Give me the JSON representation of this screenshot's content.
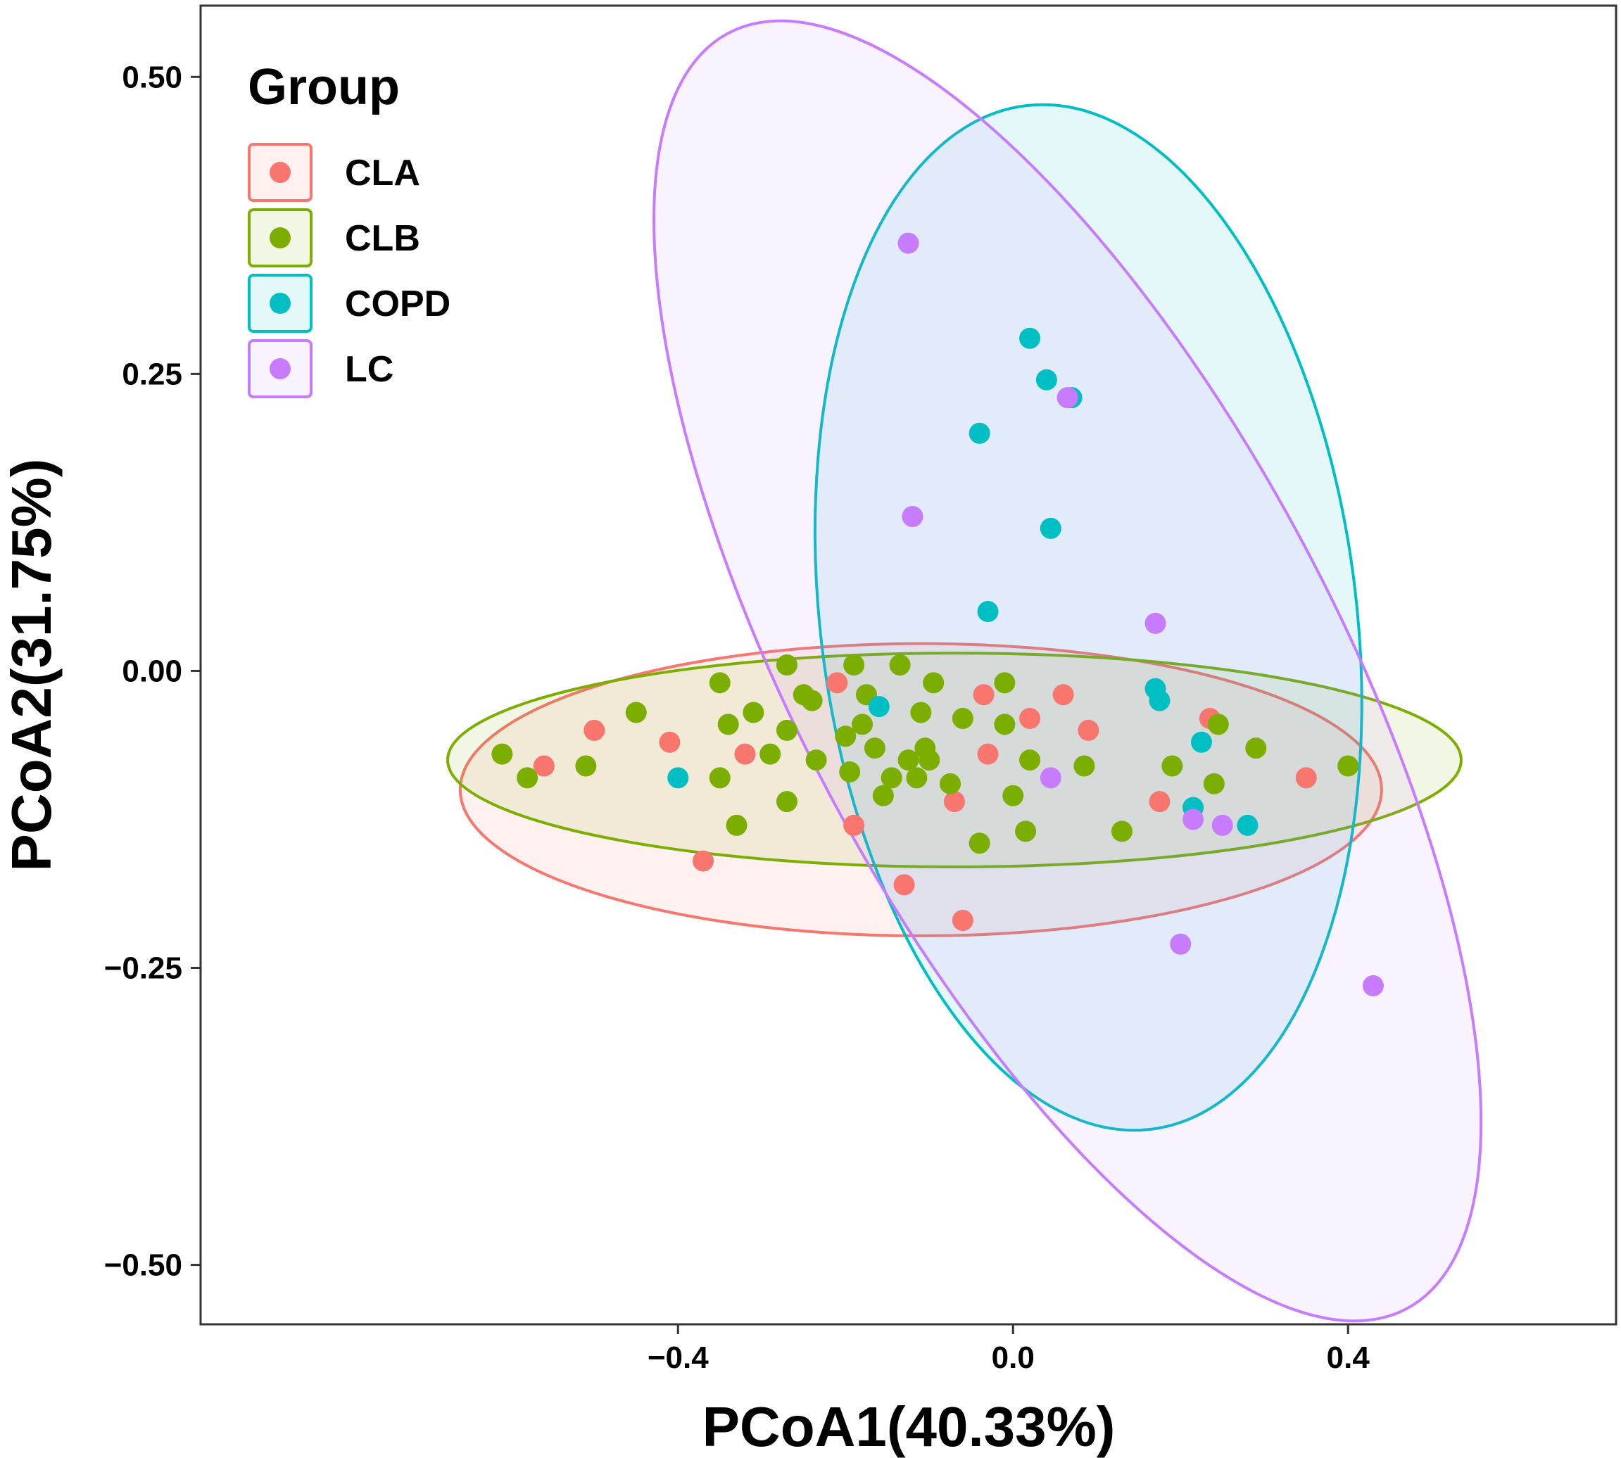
{
  "chart_data": {
    "type": "scatter",
    "title": "",
    "xlabel": "PCoA1(40.33%)",
    "ylabel": "PCoA2(31.75%)",
    "xlim": [
      -0.97,
      0.72
    ],
    "ylim": [
      -0.55,
      0.56
    ],
    "x_ticks": [
      -0.4,
      0.0,
      0.4
    ],
    "x_tick_labels": [
      "−0.4",
      "0.0",
      "0.4"
    ],
    "y_ticks": [
      0.5,
      0.25,
      0.0,
      -0.25,
      -0.5
    ],
    "y_tick_labels": [
      "0.50",
      "0.25",
      "0.00",
      "−0.25",
      "−0.50"
    ],
    "grid": false,
    "legend": {
      "title": "Group",
      "position": "top-left",
      "entries": [
        "CLA",
        "CLB",
        "COPD",
        "LC"
      ]
    },
    "series": [
      {
        "name": "CLA",
        "color": "#F8766D",
        "ellipse": {
          "center": [
            -0.11,
            -0.1
          ],
          "rx": 0.55,
          "ry": 0.123,
          "angle": 0
        },
        "points": [
          [
            -0.56,
            -0.08
          ],
          [
            -0.5,
            -0.05
          ],
          [
            -0.41,
            -0.06
          ],
          [
            -0.37,
            -0.16
          ],
          [
            -0.32,
            -0.07
          ],
          [
            -0.21,
            -0.01
          ],
          [
            -0.19,
            -0.13
          ],
          [
            -0.13,
            -0.18
          ],
          [
            -0.07,
            -0.11
          ],
          [
            -0.06,
            -0.21
          ],
          [
            -0.035,
            -0.02
          ],
          [
            -0.03,
            -0.07
          ],
          [
            0.02,
            -0.04
          ],
          [
            0.06,
            -0.02
          ],
          [
            0.09,
            -0.05
          ],
          [
            0.175,
            -0.11
          ],
          [
            0.235,
            -0.04
          ],
          [
            0.35,
            -0.09
          ]
        ]
      },
      {
        "name": "CLB",
        "color": "#7CAE00",
        "ellipse": {
          "center": [
            -0.07,
            -0.075
          ],
          "rx": 0.605,
          "ry": 0.09,
          "angle": 0
        },
        "points": [
          [
            -0.61,
            -0.07
          ],
          [
            -0.58,
            -0.09
          ],
          [
            -0.51,
            -0.08
          ],
          [
            -0.45,
            -0.035
          ],
          [
            -0.35,
            -0.01
          ],
          [
            -0.34,
            -0.045
          ],
          [
            -0.35,
            -0.09
          ],
          [
            -0.33,
            -0.13
          ],
          [
            -0.31,
            -0.035
          ],
          [
            -0.29,
            -0.07
          ],
          [
            -0.27,
            0.005
          ],
          [
            -0.25,
            -0.02
          ],
          [
            -0.27,
            -0.05
          ],
          [
            -0.24,
            -0.025
          ],
          [
            -0.235,
            -0.075
          ],
          [
            -0.27,
            -0.11
          ],
          [
            -0.2,
            -0.055
          ],
          [
            -0.195,
            -0.085
          ],
          [
            -0.19,
            0.005
          ],
          [
            -0.18,
            -0.045
          ],
          [
            -0.175,
            -0.02
          ],
          [
            -0.165,
            -0.065
          ],
          [
            -0.155,
            -0.105
          ],
          [
            -0.145,
            -0.09
          ],
          [
            -0.135,
            0.005
          ],
          [
            -0.125,
            -0.075
          ],
          [
            -0.115,
            -0.09
          ],
          [
            -0.11,
            -0.035
          ],
          [
            -0.105,
            -0.065
          ],
          [
            -0.1,
            -0.075
          ],
          [
            -0.095,
            -0.01
          ],
          [
            -0.075,
            -0.095
          ],
          [
            -0.06,
            -0.04
          ],
          [
            -0.04,
            -0.145
          ],
          [
            -0.01,
            -0.01
          ],
          [
            -0.01,
            -0.045
          ],
          [
            0.015,
            -0.135
          ],
          [
            0.02,
            -0.075
          ],
          [
            0.0,
            -0.105
          ],
          [
            0.085,
            -0.08
          ],
          [
            0.13,
            -0.135
          ],
          [
            0.19,
            -0.08
          ],
          [
            0.245,
            -0.045
          ],
          [
            0.24,
            -0.095
          ],
          [
            0.29,
            -0.065
          ],
          [
            0.4,
            -0.08
          ]
        ]
      },
      {
        "name": "COPD",
        "color": "#00BFC4",
        "ellipse": {
          "center": [
            0.09,
            0.045
          ],
          "rx": 0.32,
          "ry": 0.434,
          "angle": -7
        },
        "points": [
          [
            -0.4,
            -0.09
          ],
          [
            -0.16,
            -0.03
          ],
          [
            -0.04,
            0.2
          ],
          [
            -0.03,
            0.05
          ],
          [
            0.02,
            0.28
          ],
          [
            0.04,
            0.245
          ],
          [
            0.07,
            0.23
          ],
          [
            0.045,
            0.12
          ],
          [
            0.17,
            -0.015
          ],
          [
            0.175,
            -0.025
          ],
          [
            0.225,
            -0.06
          ],
          [
            0.215,
            -0.115
          ],
          [
            0.28,
            -0.13
          ]
        ]
      },
      {
        "name": "LC",
        "color": "#C77CFF",
        "ellipse": {
          "center": [
            0.065,
            0.0
          ],
          "rx": 0.32,
          "ry": 0.608,
          "angle": -28
        },
        "points": [
          [
            -0.125,
            0.36
          ],
          [
            -0.12,
            0.13
          ],
          [
            0.065,
            0.23
          ],
          [
            0.045,
            -0.09
          ],
          [
            0.17,
            0.04
          ],
          [
            0.2,
            -0.23
          ],
          [
            0.215,
            -0.125
          ],
          [
            0.25,
            -0.13
          ],
          [
            0.43,
            -0.265
          ]
        ]
      }
    ]
  }
}
